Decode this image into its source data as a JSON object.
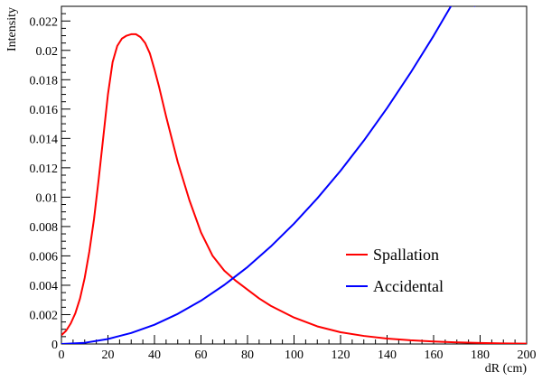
{
  "chart_data": {
    "type": "line",
    "xlabel": "dR (cm)",
    "ylabel": "Intensity",
    "xlim": [
      0,
      200
    ],
    "ylim": [
      0,
      0.023
    ],
    "x_ticks": [
      0,
      20,
      40,
      60,
      80,
      100,
      120,
      140,
      160,
      180,
      200
    ],
    "y_ticks": [
      0,
      0.002,
      0.004,
      0.006,
      0.008,
      0.01,
      0.012,
      0.014,
      0.016,
      0.018,
      0.02,
      0.022
    ],
    "grid": false,
    "legend_position": "right",
    "series": [
      {
        "name": "Spallation",
        "color": "#ff0000",
        "x": [
          0,
          2,
          4,
          6,
          8,
          10,
          12,
          14,
          16,
          18,
          20,
          22,
          24,
          26,
          28,
          30,
          32,
          34,
          36,
          38,
          40,
          42,
          45,
          50,
          55,
          60,
          65,
          70,
          75,
          80,
          85,
          90,
          100,
          110,
          120,
          130,
          140,
          150,
          160,
          170,
          180,
          190,
          200
        ],
        "y": [
          0.0006,
          0.0009,
          0.0014,
          0.0021,
          0.0031,
          0.0045,
          0.0063,
          0.0085,
          0.0112,
          0.0141,
          0.017,
          0.0192,
          0.0203,
          0.0208,
          0.021,
          0.0211,
          0.0211,
          0.0209,
          0.0205,
          0.0198,
          0.0187,
          0.0175,
          0.0155,
          0.0124,
          0.0098,
          0.0076,
          0.006,
          0.005,
          0.0043,
          0.0037,
          0.0031,
          0.0026,
          0.0018,
          0.0012,
          0.0008,
          0.00055,
          0.00037,
          0.00025,
          0.00017,
          0.00011,
          7e-05,
          4e-05,
          2e-05
        ]
      },
      {
        "name": "Accidental",
        "color": "#0000ff",
        "x": [
          0,
          10,
          20,
          30,
          40,
          50,
          60,
          70,
          80,
          90,
          100,
          110,
          120,
          130,
          140,
          150,
          160,
          170,
          178
        ],
        "y": [
          0.0,
          8e-05,
          0.00034,
          0.00075,
          0.00131,
          0.00205,
          0.00295,
          0.00402,
          0.00524,
          0.00664,
          0.0082,
          0.00992,
          0.0118,
          0.01385,
          0.01607,
          0.01845,
          0.02099,
          0.0237,
          0.023
        ]
      }
    ]
  }
}
